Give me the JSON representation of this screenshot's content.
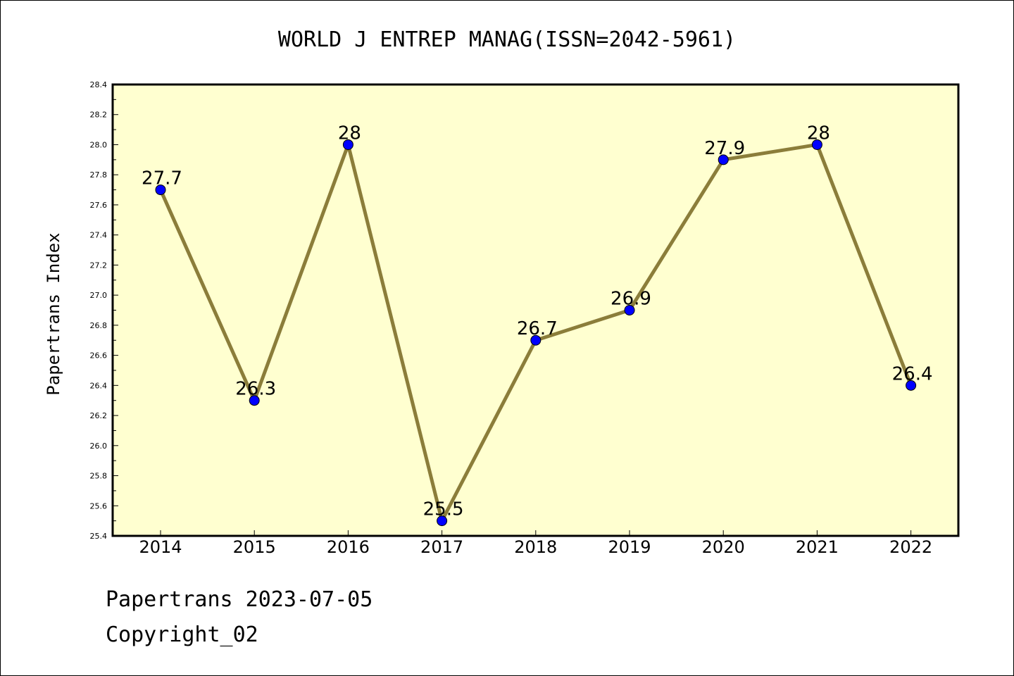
{
  "chart_data": {
    "type": "line",
    "title": "WORLD J ENTREP MANAG(ISSN=2042-5961)",
    "xlabel": "",
    "ylabel": "Papertrans Index",
    "categories": [
      "2014",
      "2015",
      "2016",
      "2017",
      "2018",
      "2019",
      "2020",
      "2021",
      "2022"
    ],
    "values": [
      27.7,
      26.3,
      28.0,
      25.5,
      26.7,
      26.9,
      27.9,
      28.0,
      26.4
    ],
    "data_labels": [
      "27.7",
      "26.3",
      "28",
      "25.5",
      "26.7",
      "26.9",
      "27.9",
      "28",
      "26.4"
    ],
    "ylim": [
      25.4,
      28.4
    ],
    "yticks": [
      "25.4",
      "25.6",
      "25.8",
      "26.0",
      "26.2",
      "26.4",
      "26.6",
      "26.8",
      "27.0",
      "27.2",
      "27.4",
      "27.6",
      "27.8",
      "28.0",
      "28.2",
      "28.4"
    ],
    "grid": false,
    "legend": "none",
    "colors": {
      "plot_background": "#ffffd0",
      "line": "#8b7d3a",
      "marker": "#0000ff"
    }
  },
  "footer": {
    "line1": "Papertrans 2023-07-05",
    "line2": "Copyright_02"
  }
}
